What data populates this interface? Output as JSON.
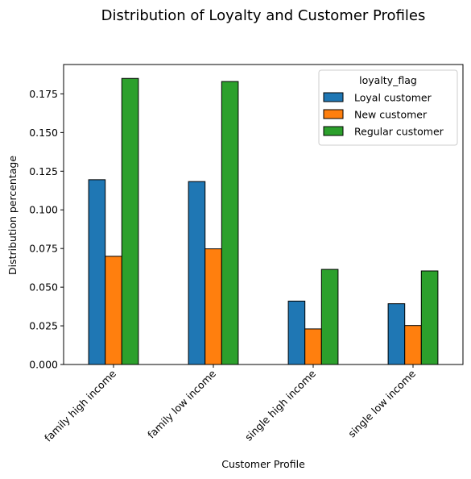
{
  "chart_data": {
    "type": "bar",
    "title": "Distribution of Loyalty and Customer Profiles",
    "xlabel": "Customer Profile",
    "ylabel": "Distribution percentage",
    "categories": [
      "family high income",
      "family low income",
      "single high income",
      "single low income"
    ],
    "series": [
      {
        "name": "Loyal customer",
        "color": "#1f77b4",
        "values": [
          0.1195,
          0.1183,
          0.041,
          0.0393
        ]
      },
      {
        "name": "New customer",
        "color": "#ff7f0e",
        "values": [
          0.07,
          0.0748,
          0.023,
          0.0252
        ]
      },
      {
        "name": "Regular customer",
        "color": "#2ca02c",
        "values": [
          0.185,
          0.183,
          0.0615,
          0.0605
        ]
      }
    ],
    "ylim": [
      0,
      0.194
    ],
    "yticks": [
      "0.000",
      "0.025",
      "0.050",
      "0.075",
      "0.100",
      "0.125",
      "0.150",
      "0.175"
    ],
    "legend": {
      "title": "loyalty_flag",
      "position": "top-right"
    },
    "grid": false
  }
}
